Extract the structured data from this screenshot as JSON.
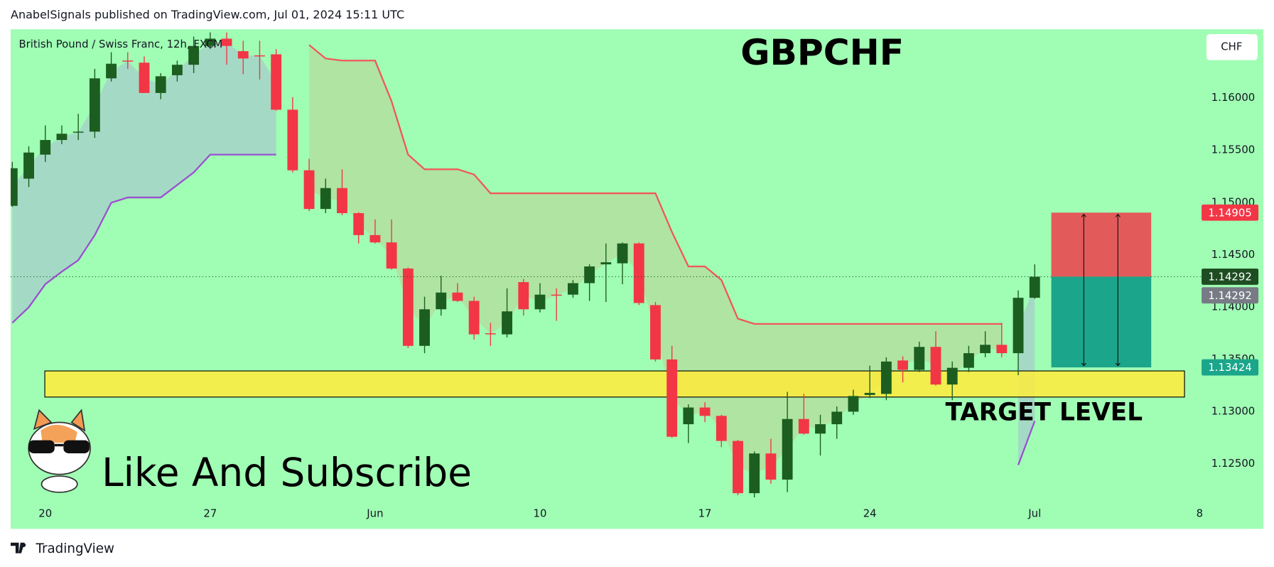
{
  "header": "AnabelSignals published on TradingView.com, Jul 01, 2024 15:11 UTC",
  "footer": "TradingView",
  "chart_data": {
    "type": "candlestick",
    "title": "GBPCHF",
    "subtitle": "British Pound / Swiss Franc, 12h, FXCM",
    "currency": "CHF",
    "annotations": {
      "zone_label": "TARGET LEVEL",
      "call_to_action": "Like And Subscribe"
    },
    "categories": [
      null,
      null,
      "20",
      null,
      null,
      null,
      null,
      null,
      null,
      null,
      null,
      null,
      "27",
      null,
      null,
      null,
      null,
      null,
      null,
      null,
      null,
      null,
      "Jun",
      null,
      null,
      null,
      null,
      null,
      null,
      null,
      null,
      null,
      "10",
      null,
      null,
      null,
      null,
      null,
      null,
      null,
      null,
      null,
      "17",
      null,
      null,
      null,
      null,
      null,
      null,
      null,
      null,
      null,
      "24",
      null,
      null,
      null,
      null,
      null,
      null,
      null,
      null,
      null,
      "Jul",
      null,
      null,
      null,
      null,
      null,
      null,
      null,
      null,
      null,
      "8"
    ],
    "open": [
      1.1497,
      1.1523,
      1.1546,
      1.156,
      1.1567,
      1.1568,
      1.1619,
      1.1636,
      1.1634,
      1.1605,
      1.1622,
      1.1632,
      1.165,
      1.1657,
      1.1645,
      1.1641,
      1.1642,
      1.1589,
      1.1531,
      1.1494,
      1.1514,
      1.149,
      1.1469,
      1.1462,
      1.1437,
      1.1363,
      1.1398,
      1.1414,
      1.1406,
      1.1375,
      1.1374,
      1.1424,
      1.1398,
      1.1412,
      1.1412,
      1.1423,
      1.1441,
      1.1442,
      1.1461,
      1.1402,
      1.135,
      1.1288,
      1.1304,
      1.1296,
      1.1272,
      1.1222,
      1.126,
      1.1235,
      1.1293,
      1.1279,
      1.1288,
      1.13,
      1.1316,
      1.1317,
      1.1349,
      1.134,
      1.1362,
      1.1326,
      1.1342,
      1.1356,
      1.1364,
      1.1356,
      1.1409,
      null,
      null,
      null,
      null,
      null,
      null,
      null,
      null,
      null,
      null
    ],
    "high": [
      1.1539,
      1.1554,
      1.1574,
      1.1574,
      1.1585,
      1.1628,
      1.1644,
      1.1644,
      1.164,
      1.1624,
      1.1636,
      1.1659,
      1.1663,
      1.1663,
      1.1655,
      1.1655,
      1.1647,
      1.1601,
      1.1542,
      1.1523,
      1.1532,
      1.1491,
      1.1484,
      1.1484,
      1.1438,
      1.141,
      1.143,
      1.1423,
      1.141,
      1.1385,
      1.1418,
      1.1427,
      1.1423,
      1.1418,
      1.1426,
      1.1441,
      1.1461,
      1.1462,
      1.1462,
      1.1405,
      1.1363,
      1.1307,
      1.1309,
      1.1297,
      1.1273,
      1.1262,
      1.1274,
      1.1319,
      1.1317,
      1.1297,
      1.1305,
      1.1321,
      1.1344,
      1.1352,
      1.1353,
      1.1367,
      1.1377,
      1.1348,
      1.1363,
      1.1377,
      1.1385,
      1.1416,
      1.1441,
      null,
      null,
      null,
      null,
      null,
      null,
      null,
      null,
      null,
      null
    ],
    "low": [
      1.1496,
      1.1515,
      1.1539,
      1.1556,
      1.156,
      1.1562,
      1.1616,
      1.1628,
      1.1605,
      1.1599,
      1.1616,
      1.1624,
      1.1647,
      1.1632,
      1.1623,
      1.1618,
      1.1588,
      1.1529,
      1.1492,
      1.149,
      1.1488,
      1.1461,
      1.1461,
      1.1436,
      1.1361,
      1.1356,
      1.1392,
      1.1405,
      1.1369,
      1.1363,
      1.1371,
      1.1392,
      1.1395,
      1.1387,
      1.1409,
      1.1406,
      1.1405,
      1.1422,
      1.1402,
      1.1348,
      1.1275,
      1.127,
      1.129,
      1.1266,
      1.122,
      1.1218,
      1.1231,
      1.1223,
      1.1278,
      1.1258,
      1.1274,
      1.1297,
      1.1313,
      1.1311,
      1.1328,
      1.1338,
      1.1325,
      1.1311,
      1.1338,
      1.1352,
      1.1352,
      1.1335,
      1.1408,
      null,
      null,
      null,
      null,
      null,
      null,
      null,
      null,
      null,
      null
    ],
    "close": [
      1.1533,
      1.1548,
      1.156,
      1.1566,
      1.1568,
      1.1619,
      1.1633,
      1.1635,
      1.1605,
      1.1621,
      1.1632,
      1.165,
      1.1657,
      1.165,
      1.1638,
      1.164,
      1.1589,
      1.1531,
      1.1494,
      1.1514,
      1.149,
      1.1469,
      1.1462,
      1.1437,
      1.1363,
      1.1398,
      1.1414,
      1.1406,
      1.1374,
      1.1374,
      1.1396,
      1.1398,
      1.1412,
      1.1411,
      1.1423,
      1.1439,
      1.1443,
      1.1461,
      1.1404,
      1.135,
      1.1276,
      1.1304,
      1.1296,
      1.1272,
      1.1222,
      1.126,
      1.1235,
      1.1293,
      1.1279,
      1.1288,
      1.13,
      1.1315,
      1.1318,
      1.1348,
      1.134,
      1.1362,
      1.1326,
      1.1342,
      1.1356,
      1.1364,
      1.1356,
      1.1409,
      1.14292,
      null,
      null,
      null,
      null,
      null,
      null,
      null,
      null,
      null,
      null
    ],
    "up_color": "#1b5e20",
    "down_color": "#f23645",
    "indicator": [
      {
        "color": "#f0575a",
        "fill": "rgba(215,165,120,0.28)",
        "values": [
          null,
          null,
          null,
          null,
          null,
          null,
          null,
          null,
          null,
          null,
          null,
          null,
          null,
          null,
          null,
          null,
          null,
          null,
          1.1651,
          1.1638,
          1.1636,
          1.1636,
          1.1636,
          1.1597,
          1.1546,
          1.1532,
          1.1532,
          1.1532,
          1.1527,
          1.1509,
          1.1509,
          1.1509,
          1.1509,
          1.1509,
          1.1509,
          1.1509,
          1.1509,
          1.1509,
          1.1509,
          1.1509,
          1.1472,
          1.1439,
          1.1439,
          1.1426,
          1.1389,
          1.1384,
          1.1384,
          1.1384,
          1.1384,
          1.1384,
          1.1384,
          1.1384,
          1.1384,
          1.1384,
          1.1384,
          1.1384,
          1.1384,
          1.1384,
          1.1384,
          1.1384,
          1.1384,
          null,
          null,
          null,
          null,
          null,
          null,
          null,
          null,
          null,
          null,
          null,
          null
        ]
      },
      {
        "color": "#9b4fd1",
        "fill": "rgba(170,160,225,0.38)",
        "values": [
          1.1385,
          1.14,
          1.1422,
          1.1434,
          1.1445,
          1.1469,
          1.15,
          1.1505,
          1.1505,
          1.1505,
          1.1517,
          1.1529,
          1.1546,
          1.1546,
          1.1546,
          1.1546,
          1.1546,
          null,
          null,
          null,
          null,
          null,
          null,
          null,
          null,
          null,
          null,
          null,
          null,
          null,
          null,
          null,
          null,
          null,
          null,
          null,
          null,
          null,
          null,
          null,
          null,
          null,
          null,
          null,
          null,
          null,
          null,
          null,
          null,
          null,
          null,
          null,
          null,
          null,
          null,
          null,
          null,
          null,
          null,
          null,
          null,
          1.1249,
          1.1291,
          null,
          null,
          null,
          null,
          null,
          null,
          null,
          null,
          null,
          null
        ]
      }
    ],
    "zone": {
      "low": 1.1314,
      "high": 1.1339,
      "color": "#ffeb3b"
    },
    "position": {
      "stop": 1.14905,
      "entry": 1.14292,
      "target": 1.13424,
      "stop_color": "#e35a5a",
      "target_color": "#1ba58a",
      "entry_color": "#1e4d22"
    },
    "last_price_color": "#787b86",
    "background": "#a0fdb4",
    "ylim": [
      1.1212,
      1.1666
    ],
    "yticks": [
      {
        "value": 1.125,
        "label": "1.12500"
      },
      {
        "value": 1.13,
        "label": "1.13000"
      },
      {
        "value": 1.135,
        "label": "1.13500"
      },
      {
        "value": 1.14,
        "label": "1.14000"
      },
      {
        "value": 1.145,
        "label": "1.14500"
      },
      {
        "value": 1.15,
        "label": "1.15000"
      },
      {
        "value": 1.155,
        "label": "1.15500"
      },
      {
        "value": 1.16,
        "label": "1.16000"
      }
    ],
    "grid": false
  }
}
